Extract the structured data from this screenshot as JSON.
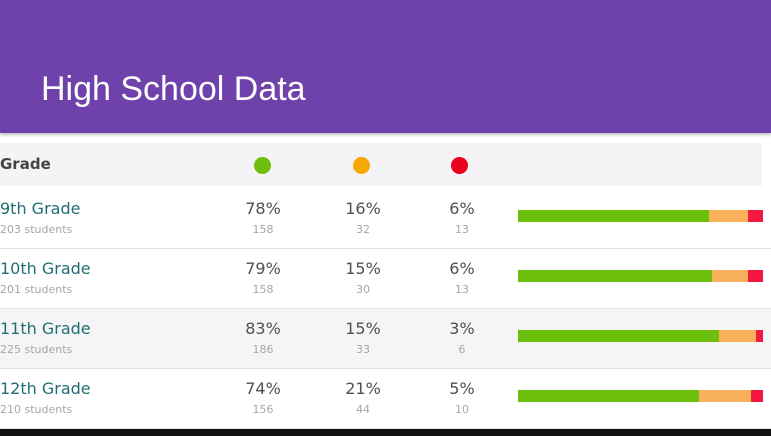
{
  "header": {
    "title": "High School Data"
  },
  "table": {
    "grade_header": "Grade",
    "status_icons": [
      {
        "name": "green-status-icon",
        "color": "#6cbf0a"
      },
      {
        "name": "amber-status-icon",
        "color": "#f7a800"
      },
      {
        "name": "red-status-icon",
        "color": "#e8001c"
      }
    ],
    "bar_colors": {
      "green": "#6cbf0a",
      "amber": "#f8b15a",
      "red": "#f4173f"
    },
    "rows": [
      {
        "grade": "9th Grade",
        "students": "203 students",
        "green_pct": "78%",
        "green_count": "158",
        "amber_pct": "16%",
        "amber_count": "32",
        "red_pct": "6%",
        "red_count": "13",
        "bar": [
          78,
          16,
          6
        ]
      },
      {
        "grade": "10th Grade",
        "students": "201 students",
        "green_pct": "79%",
        "green_count": "158",
        "amber_pct": "15%",
        "amber_count": "30",
        "red_pct": "6%",
        "red_count": "13",
        "bar": [
          79,
          15,
          6
        ]
      },
      {
        "grade": "11th Grade",
        "students": "225 students",
        "green_pct": "83%",
        "green_count": "186",
        "amber_pct": "15%",
        "amber_count": "33",
        "red_pct": "3%",
        "red_count": "6",
        "bar": [
          83,
          15,
          3
        ]
      },
      {
        "grade": "12th Grade",
        "students": "210 students",
        "green_pct": "74%",
        "green_count": "156",
        "amber_pct": "21%",
        "amber_count": "44",
        "red_pct": "5%",
        "red_count": "10",
        "bar": [
          74,
          21,
          5
        ]
      }
    ]
  }
}
